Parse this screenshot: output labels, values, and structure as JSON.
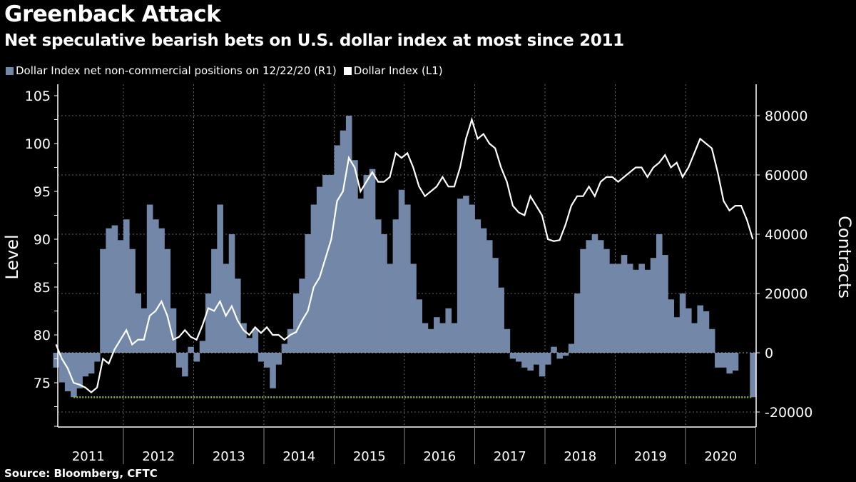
{
  "title": "Greenback Attack",
  "subtitle": "Net speculative bearish bets on U.S. dollar index at most since 2011",
  "source": "Source: Bloomberg, CFTC",
  "colors": {
    "positions": "#7387a8",
    "index": "#ffffff",
    "threshold": "#7fc31c",
    "background": "#000000"
  },
  "chart_data": {
    "type": "bar+line",
    "legend_placement": "top-left",
    "grid": true,
    "x_ticks": [
      "2011",
      "2012",
      "2013",
      "2014",
      "2015",
      "2016",
      "2017",
      "2018",
      "2019",
      "2020"
    ],
    "left_axis": {
      "label": "Level",
      "ticks": [
        75,
        80,
        85,
        90,
        95,
        100,
        105
      ],
      "ylim": [
        70,
        106
      ]
    },
    "right_axis": {
      "label": "Contracts",
      "ticks": [
        -20000,
        0,
        20000,
        40000,
        60000,
        80000
      ],
      "ylim": [
        -25000,
        90000
      ]
    },
    "x_start": "2011-01",
    "x_end": "2020-12",
    "x_frequency": "monthly",
    "series": [
      {
        "name": "Dollar Index net non-commercial positions on 12/22/20 (R1)",
        "type": "bar",
        "axis": "right",
        "values": [
          -5000,
          -10000,
          -13000,
          -15000,
          -12000,
          -8000,
          -7000,
          -3000,
          35000,
          42000,
          43000,
          38000,
          45000,
          35000,
          20000,
          15000,
          50000,
          45000,
          42000,
          35000,
          15000,
          -5000,
          -8000,
          2000,
          -3000,
          4000,
          20000,
          35000,
          50000,
          30000,
          40000,
          25000,
          10000,
          5000,
          8000,
          -3000,
          -5000,
          -12000,
          -4000,
          3000,
          8000,
          20000,
          25000,
          40000,
          50000,
          56000,
          60000,
          60000,
          70000,
          75000,
          80000,
          65000,
          52000,
          60000,
          62000,
          45000,
          40000,
          30000,
          45000,
          55000,
          50000,
          30000,
          18000,
          10000,
          8000,
          12000,
          10000,
          15000,
          10000,
          52000,
          53000,
          50000,
          45000,
          42000,
          38000,
          32000,
          22000,
          8000,
          -2000,
          -3000,
          -5000,
          -6000,
          -4000,
          -8000,
          -4000,
          2000,
          -2000,
          -1000,
          3000,
          20000,
          35000,
          38000,
          40000,
          38000,
          35000,
          30000,
          30000,
          33000,
          30000,
          28000,
          30000,
          28000,
          32000,
          40000,
          33000,
          18000,
          12000,
          20000,
          15000,
          10000,
          16000,
          14000,
          8000,
          -5000,
          -5000,
          -7000,
          -6000,
          0,
          0,
          -15000
        ]
      },
      {
        "name": "Dollar Index (L1)",
        "type": "line",
        "axis": "left",
        "values": [
          79,
          77.5,
          76.5,
          75,
          74.8,
          74.5,
          74,
          74.5,
          77.5,
          77,
          78.5,
          79.5,
          80.5,
          79,
          79.5,
          79.5,
          82,
          82.5,
          83.5,
          82,
          79.5,
          79.8,
          80.5,
          79.8,
          79.5,
          81,
          82.8,
          82.5,
          83.5,
          82,
          83,
          81.5,
          80.5,
          80,
          80.8,
          80.2,
          80.8,
          80,
          80,
          79.5,
          80,
          80.3,
          81.5,
          82.5,
          85,
          86,
          88,
          90,
          94,
          95,
          98.5,
          97.5,
          95,
          96,
          97,
          96,
          96,
          96.5,
          99,
          98.5,
          99,
          97.5,
          95.5,
          94.5,
          95,
          95.5,
          96.5,
          95.5,
          95.5,
          97.5,
          100.5,
          102.5,
          100.5,
          101,
          100,
          99.5,
          97.5,
          96,
          93.5,
          92.8,
          92.5,
          94.5,
          93.5,
          92.5,
          90,
          89.8,
          89.9,
          91.5,
          93.5,
          94.5,
          94.5,
          95.5,
          94.5,
          96,
          96.5,
          96.5,
          96,
          96.5,
          97,
          97.5,
          97.5,
          96.5,
          97.5,
          98,
          98.8,
          97.5,
          98,
          96.5,
          97.5,
          99,
          100.5,
          100,
          99.5,
          97,
          94,
          93,
          93.5,
          93.5,
          92,
          90
        ]
      }
    ],
    "annotations": [
      {
        "type": "hline",
        "axis": "right",
        "value": -15000,
        "from": "2011-04",
        "to": "2020-12",
        "style": "dotted",
        "color": "#7fc31c"
      }
    ]
  }
}
